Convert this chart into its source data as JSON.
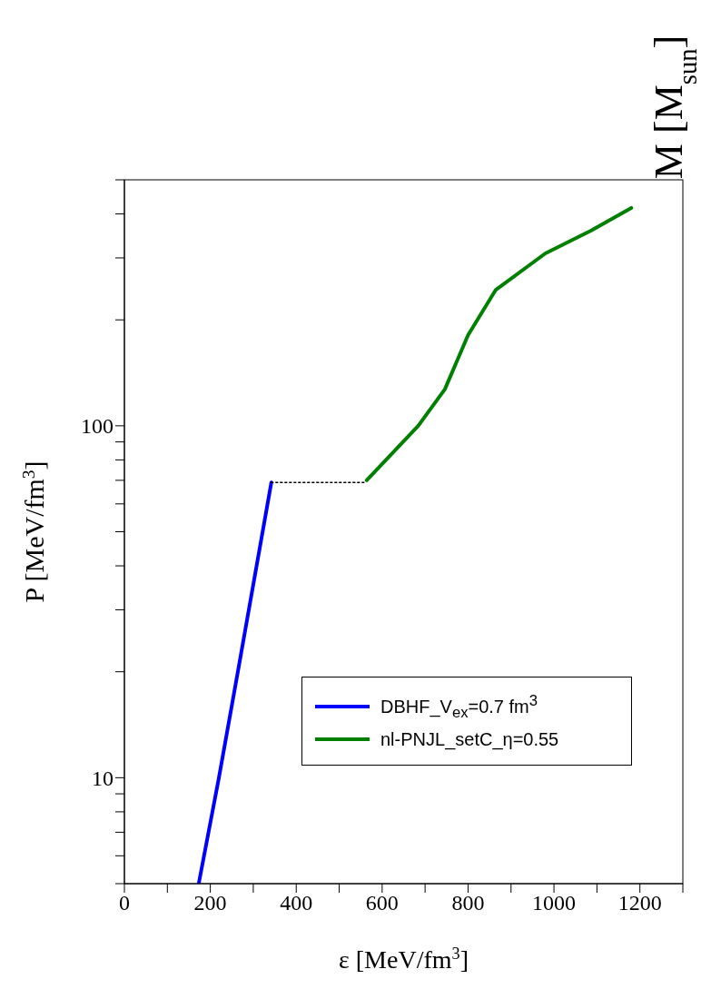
{
  "chart_data": {
    "type": "line",
    "xlabel": "ε [MeV/fm$^{3}$]",
    "ylabel": "P [MeV/fm$^{3}$]",
    "y2label": "M [M$_{sun}$]",
    "xlim": [
      0,
      1300
    ],
    "xticks": [
      0,
      {
        "value": 100,
        "label": null
      },
      200,
      {
        "value": 300,
        "label": null
      },
      400,
      {
        "value": 500,
        "label": null
      },
      600,
      {
        "value": 700,
        "label": null
      },
      800,
      {
        "value": 900,
        "label": null
      },
      1000,
      {
        "value": 1100,
        "label": null
      },
      1200,
      {
        "value": 1300,
        "label": null
      }
    ],
    "ylim": [
      5,
      500
    ],
    "yticks": [
      {
        "value": 5,
        "label": null
      },
      {
        "value": 6,
        "label": null
      },
      {
        "value": 7,
        "label": null
      },
      {
        "value": 8,
        "label": null
      },
      {
        "value": 9,
        "label": null
      },
      10,
      {
        "value": 20,
        "label": null
      },
      {
        "value": 30,
        "label": null
      },
      {
        "value": 40,
        "label": null
      },
      {
        "value": 50,
        "label": null
      },
      {
        "value": 60,
        "label": null
      },
      {
        "value": 70,
        "label": null
      },
      {
        "value": 80,
        "label": null
      },
      {
        "value": 90,
        "label": null
      },
      100,
      {
        "value": 200,
        "label": null
      },
      {
        "value": 300,
        "label": null
      },
      {
        "value": 400,
        "label": null
      },
      {
        "value": 500,
        "label": null
      }
    ],
    "log": "y",
    "grid": false,
    "legend": "bottom right",
    "marker": "none",
    "series": [
      {
        "name": "DBHF_V$_{ex}$=0.7 fm$^{3}$",
        "color": "#0000ff",
        "x": [
          173,
          220,
          266,
          342
        ],
        "values": [
          5,
          10,
          20.6,
          69
        ]
      },
      {
        "color": "#000000",
        "line_style": "dotted",
        "x": [
          342,
          558
        ],
        "values": [
          69,
          69
        ]
      },
      {
        "name": "nl-PNJL_setC_η=0.55",
        "color": "#008000",
        "x": [
          564,
          684,
          746,
          800,
          864,
          980,
          1085,
          1180
        ],
        "values": [
          70,
          100,
          127,
          181,
          243,
          309,
          358,
          416
        ]
      }
    ]
  }
}
